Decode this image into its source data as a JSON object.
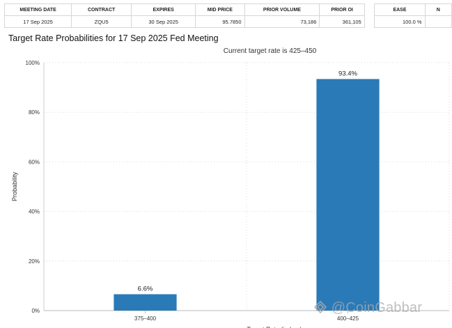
{
  "table": {
    "headers": [
      "MEETING DATE",
      "CONTRACT",
      "EXPIRES",
      "MID PRICE",
      "PRIOR VOLUME",
      "PRIOR OI",
      "",
      "EASE",
      "N"
    ],
    "row": [
      "17 Sep 2025",
      "ZQU5",
      "30 Sep 2025",
      "95.7850",
      "73,186",
      "361,105",
      "",
      "100.0 %",
      ""
    ]
  },
  "chart_data": {
    "type": "bar",
    "title": "Target Rate Probabilities for 17 Sep 2025 Fed Meeting",
    "subtitle": "Current target rate is 425–450",
    "xlabel": "Target Rate (in bps)",
    "ylabel": "Probability",
    "categories": [
      "375–400",
      "400–425"
    ],
    "values": [
      6.6,
      93.4
    ],
    "data_labels": [
      "6.6%",
      "93.4%"
    ],
    "ylim": [
      0,
      100
    ],
    "yticks": [
      0,
      20,
      40,
      60,
      80,
      100
    ],
    "ytick_labels": [
      "0%",
      "20%",
      "40%",
      "60%",
      "80%",
      "100%"
    ],
    "bar_color": "#2a7ab8",
    "grid": true
  },
  "watermark": {
    "text": "@CoinGabbar"
  }
}
